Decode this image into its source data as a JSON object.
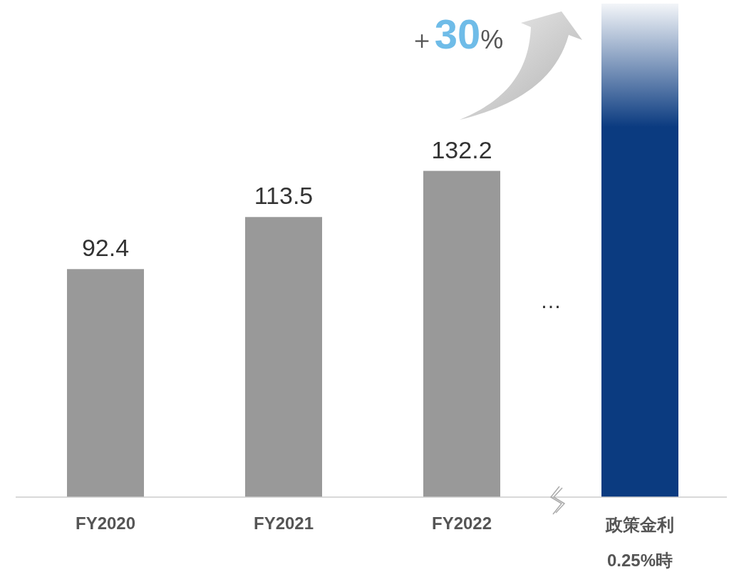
{
  "chart_data": {
    "type": "bar",
    "categories": [
      "FY2020",
      "FY2021",
      "FY2022",
      "政策金利 0.25%時"
    ],
    "values": [
      92.4,
      113.5,
      132.2,
      200
    ],
    "value_labels": [
      "92.4",
      "113.5",
      "132.2",
      null
    ],
    "colors": [
      "#999999",
      "#999999",
      "#999999",
      "#0b3b80"
    ],
    "ylim": [
      0,
      200
    ],
    "tick_labels": "x",
    "annotations": [
      "＋30%",
      "…"
    ]
  }
}
